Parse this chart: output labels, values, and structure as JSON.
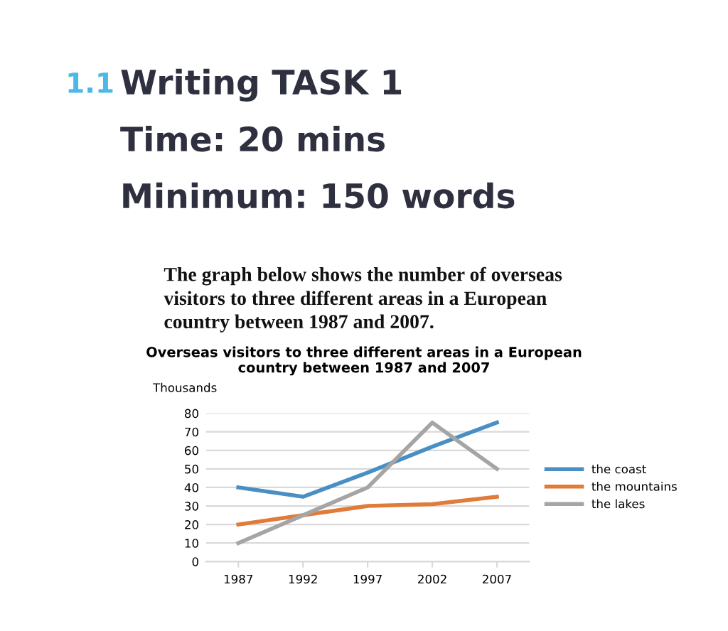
{
  "chart_data": {
    "type": "line",
    "title": "Overseas visitors to three different areas in a European\ncountry between 1987 and 2007",
    "ylabel": "Thousands",
    "annotations": [
      "1.1",
      "Writing TASK 1",
      "Time: 20 mins",
      "Minimum: 150 words",
      "The graph below shows the number of overseas\nvisitors to three different areas in a European\ncountry between 1987 and 2007."
    ],
    "categories": [
      "1987",
      "1992",
      "1997",
      "2002",
      "2007"
    ],
    "series": [
      {
        "name": "the coast",
        "color": "#4a8fc4",
        "values": [
          40,
          35,
          48,
          62,
          75
        ]
      },
      {
        "name": "the mountains",
        "color": "#e07b39",
        "values": [
          20,
          25,
          30,
          31,
          35
        ]
      },
      {
        "name": "the lakes",
        "color": "#a5a5a5",
        "values": [
          10,
          25,
          40,
          75,
          50
        ]
      }
    ],
    "ylim": [
      0,
      80
    ],
    "yticks": [
      0,
      10,
      20,
      30,
      40,
      50,
      60,
      70,
      80
    ],
    "grid": "y",
    "legend": "right",
    "marker": "none",
    "line_style": "solid"
  }
}
